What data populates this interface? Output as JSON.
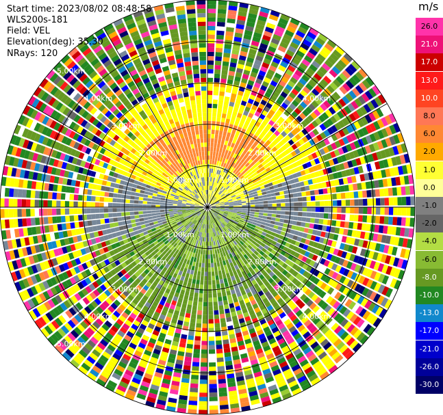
{
  "header": {
    "start_time": "Start time: 2023/08/02 08:48:58",
    "instrument": "WLS200s-181",
    "field": "Field: VEL",
    "elevation": "Elevation(deg): 35.30",
    "nrays": "NRays: 120"
  },
  "chart_data": {
    "type": "heatmap",
    "projection": "polar (PPI scan)",
    "field": "VEL",
    "units": "m/s",
    "n_rays": 120,
    "elevation_deg": 35.3,
    "range_km": [
      0,
      5.0
    ],
    "range_rings_km": [
      1.0,
      2.0,
      3.0,
      4.0,
      5.0
    ],
    "ring_labels": [
      "1.00km",
      "2.00km",
      "3.00km",
      "4.00km",
      "5.00km"
    ],
    "colorbar": {
      "label": "m/s",
      "ticks": [
        "26.0",
        "21.0",
        "17.0",
        "13.0",
        "10.0",
        "8.0",
        "6.0",
        "2.0",
        "1.0",
        "0.0",
        "-1.0",
        "-2.0",
        "-4.0",
        "-6.0",
        "-8.0",
        "-10.0",
        "-13.0",
        "-17.0",
        "-21.0",
        "-26.0",
        "-30.0"
      ],
      "colors": [
        "#ff33aa",
        "#ee1177",
        "#cc0000",
        "#ff1a1a",
        "#ff4422",
        "#ff7755",
        "#ff8833",
        "#ffaa00",
        "#ffff33",
        "#ffff99",
        "#808080",
        "#666666",
        "#b3dd44",
        "#88bb33",
        "#669922",
        "#228822",
        "#1188cc",
        "#0000ff",
        "#0000cc",
        "#000099",
        "#000066",
        "#000033"
      ]
    },
    "pattern": {
      "inner_km": [
        0,
        1.0,
        "gray/green mixed near zero"
      ],
      "north_sector_km": [
        0.8,
        2.4,
        "yellow and orange, +2 to +8 m/s"
      ],
      "south_sector_km": [
        0.8,
        2.4,
        "green, -2 to -6 m/s"
      ],
      "east_west_km": [
        0.8,
        2.4,
        "gray, about 0 m/s"
      ],
      "outer_km": [
        2.4,
        5.0,
        "noisy, all colors"
      ]
    }
  }
}
